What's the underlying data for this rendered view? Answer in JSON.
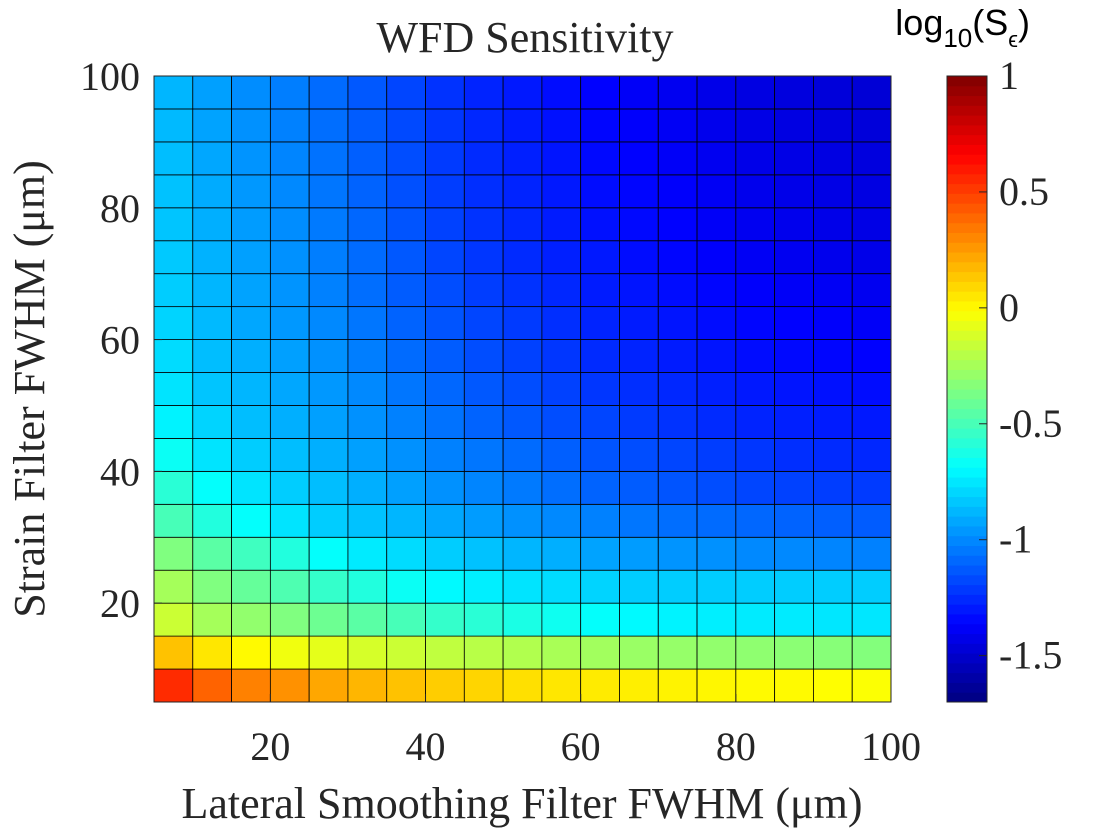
{
  "chart_data": {
    "type": "heatmap",
    "title": "WFD Sensitivity",
    "xlabel": "Lateral Smoothing Filter FWHM (μm)",
    "ylabel": "Strain Filter FWHM (μm)",
    "xlim": [
      5,
      100
    ],
    "ylim": [
      5,
      100
    ],
    "x_ticks": [
      20,
      40,
      60,
      80,
      100
    ],
    "y_ticks": [
      20,
      40,
      60,
      80,
      100
    ],
    "x_centers": [
      7.5,
      12.5,
      17.5,
      22.5,
      27.5,
      32.5,
      37.5,
      42.5,
      47.5,
      52.5,
      57.5,
      62.5,
      67.5,
      72.5,
      77.5,
      82.5,
      87.5,
      92.5,
      97.5
    ],
    "y_centers": [
      7.5,
      12.5,
      17.5,
      22.5,
      27.5,
      32.5,
      37.5,
      42.5,
      47.5,
      52.5,
      57.5,
      62.5,
      67.5,
      72.5,
      77.5,
      82.5,
      87.5,
      92.5,
      97.5
    ],
    "values": [
      [
        0.55,
        0.4,
        0.32,
        0.28,
        0.22,
        0.18,
        0.15,
        0.12,
        0.1,
        0.07,
        0.05,
        0.04,
        0.03,
        0.02,
        0.01,
        0.0,
        0.0,
        -0.01,
        -0.02
      ],
      [
        0.15,
        0.05,
        0.0,
        -0.05,
        -0.08,
        -0.12,
        -0.15,
        -0.18,
        -0.2,
        -0.22,
        -0.24,
        -0.26,
        -0.28,
        -0.29,
        -0.3,
        -0.31,
        -0.32,
        -0.33,
        -0.34
      ],
      [
        -0.15,
        -0.25,
        -0.3,
        -0.35,
        -0.4,
        -0.45,
        -0.5,
        -0.55,
        -0.58,
        -0.62,
        -0.65,
        -0.68,
        -0.7,
        -0.72,
        -0.73,
        -0.74,
        -0.74,
        -0.75,
        -0.75
      ],
      [
        -0.25,
        -0.35,
        -0.42,
        -0.48,
        -0.55,
        -0.6,
        -0.66,
        -0.7,
        -0.73,
        -0.76,
        -0.78,
        -0.8,
        -0.82,
        -0.82,
        -0.82,
        -0.82,
        -0.82,
        -0.82,
        -0.82
      ],
      [
        -0.35,
        -0.45,
        -0.52,
        -0.6,
        -0.68,
        -0.74,
        -0.78,
        -0.82,
        -0.85,
        -0.88,
        -0.9,
        -0.93,
        -0.95,
        -0.97,
        -0.98,
        -1.0,
        -1.0,
        -1.01,
        -1.02
      ],
      [
        -0.5,
        -0.6,
        -0.68,
        -0.76,
        -0.82,
        -0.85,
        -0.88,
        -0.92,
        -0.95,
        -0.98,
        -1.0,
        -1.02,
        -1.05,
        -1.07,
        -1.08,
        -1.09,
        -1.1,
        -1.11,
        -1.12
      ],
      [
        -0.58,
        -0.68,
        -0.76,
        -0.82,
        -0.86,
        -0.9,
        -0.94,
        -0.98,
        -1.01,
        -1.04,
        -1.07,
        -1.1,
        -1.12,
        -1.14,
        -1.16,
        -1.18,
        -1.19,
        -1.2,
        -1.21
      ],
      [
        -0.66,
        -0.76,
        -0.82,
        -0.86,
        -0.9,
        -0.94,
        -0.98,
        -1.02,
        -1.05,
        -1.08,
        -1.11,
        -1.14,
        -1.16,
        -1.18,
        -1.2,
        -1.22,
        -1.24,
        -1.25,
        -1.26
      ],
      [
        -0.72,
        -0.8,
        -0.86,
        -0.9,
        -0.94,
        -0.98,
        -1.02,
        -1.06,
        -1.1,
        -1.13,
        -1.16,
        -1.18,
        -1.21,
        -1.23,
        -1.25,
        -1.27,
        -1.28,
        -1.29,
        -1.3
      ],
      [
        -0.76,
        -0.84,
        -0.88,
        -0.92,
        -0.96,
        -1.0,
        -1.05,
        -1.09,
        -1.13,
        -1.16,
        -1.19,
        -1.22,
        -1.24,
        -1.26,
        -1.28,
        -1.3,
        -1.31,
        -1.32,
        -1.33
      ],
      [
        -0.78,
        -0.86,
        -0.9,
        -0.94,
        -0.98,
        -1.03,
        -1.08,
        -1.12,
        -1.16,
        -1.19,
        -1.22,
        -1.25,
        -1.27,
        -1.29,
        -1.31,
        -1.33,
        -1.34,
        -1.35,
        -1.36
      ],
      [
        -0.8,
        -0.87,
        -0.92,
        -0.96,
        -1.0,
        -1.05,
        -1.1,
        -1.14,
        -1.18,
        -1.21,
        -1.24,
        -1.27,
        -1.29,
        -1.31,
        -1.33,
        -1.35,
        -1.36,
        -1.37,
        -1.38
      ],
      [
        -0.82,
        -0.88,
        -0.93,
        -0.97,
        -1.02,
        -1.07,
        -1.12,
        -1.16,
        -1.2,
        -1.23,
        -1.26,
        -1.29,
        -1.31,
        -1.33,
        -1.35,
        -1.37,
        -1.38,
        -1.39,
        -1.4
      ],
      [
        -0.83,
        -0.89,
        -0.94,
        -0.98,
        -1.03,
        -1.08,
        -1.13,
        -1.18,
        -1.22,
        -1.25,
        -1.28,
        -1.3,
        -1.33,
        -1.35,
        -1.37,
        -1.39,
        -1.4,
        -1.41,
        -1.42
      ],
      [
        -0.84,
        -0.9,
        -0.95,
        -0.99,
        -1.04,
        -1.09,
        -1.14,
        -1.19,
        -1.23,
        -1.26,
        -1.29,
        -1.32,
        -1.34,
        -1.36,
        -1.38,
        -1.4,
        -1.41,
        -1.42,
        -1.43
      ],
      [
        -0.85,
        -0.91,
        -0.96,
        -1.0,
        -1.05,
        -1.1,
        -1.15,
        -1.2,
        -1.24,
        -1.27,
        -1.3,
        -1.33,
        -1.35,
        -1.37,
        -1.39,
        -1.41,
        -1.42,
        -1.43,
        -1.44
      ],
      [
        -0.86,
        -0.92,
        -0.97,
        -1.01,
        -1.06,
        -1.11,
        -1.16,
        -1.21,
        -1.25,
        -1.28,
        -1.31,
        -1.34,
        -1.36,
        -1.38,
        -1.4,
        -1.42,
        -1.43,
        -1.44,
        -1.45
      ],
      [
        -0.87,
        -0.93,
        -0.98,
        -1.02,
        -1.07,
        -1.12,
        -1.17,
        -1.22,
        -1.26,
        -1.29,
        -1.32,
        -1.35,
        -1.37,
        -1.39,
        -1.41,
        -1.43,
        -1.44,
        -1.45,
        -1.46
      ],
      [
        -0.88,
        -0.94,
        -0.99,
        -1.03,
        -1.08,
        -1.13,
        -1.18,
        -1.23,
        -1.27,
        -1.3,
        -1.33,
        -1.36,
        -1.38,
        -1.4,
        -1.42,
        -1.44,
        -1.45,
        -1.46,
        -1.47
      ]
    ],
    "colorbar": {
      "label": "log10(Sε)",
      "label_base": "log",
      "label_sub": "10",
      "label_open": "(S",
      "label_sub2": "ϵ",
      "label_close": ")",
      "clim": [
        -1.7,
        1
      ],
      "ticks": [
        1,
        0.5,
        0,
        -0.5,
        -1,
        -1.5
      ],
      "tick_labels": [
        "1",
        "0.5",
        "0",
        "-0.5",
        "-1",
        "-1.5"
      ],
      "colormap": "jet"
    },
    "grid": true,
    "colors": {
      "cell_edge": "#000000",
      "text": "#262626"
    }
  }
}
